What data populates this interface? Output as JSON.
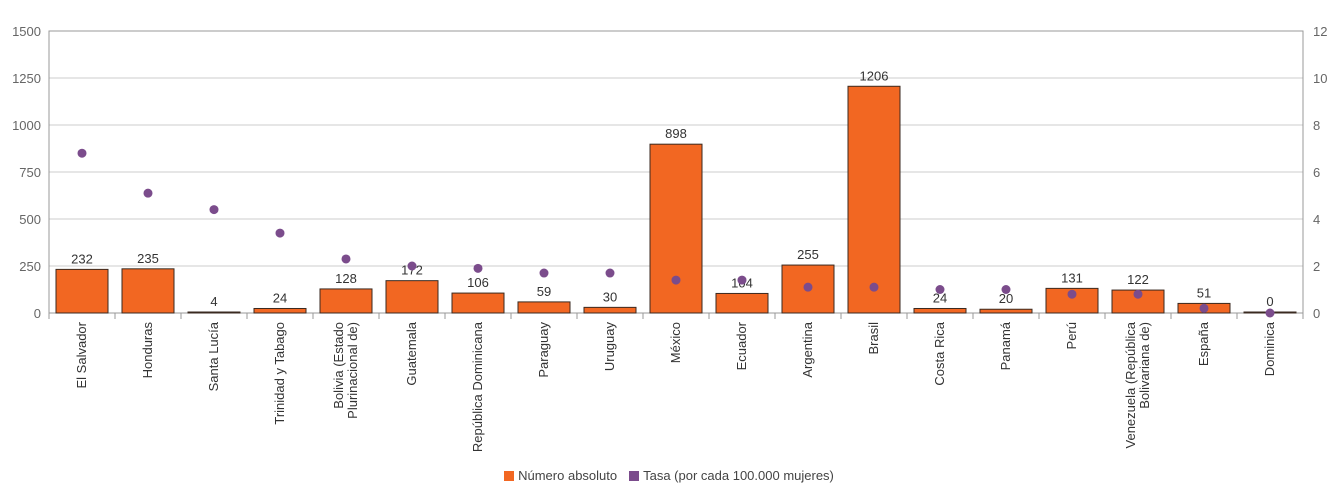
{
  "chart_data": {
    "type": "bar",
    "categories": [
      "El Salvador",
      "Honduras",
      "Santa Lucía",
      "Trinidad y Tabago",
      "Bolivia (Estado Plurinacional de)",
      "Guatemala",
      "República Dominicana",
      "Paraguay",
      "Uruguay",
      "México",
      "Ecuador",
      "Argentina",
      "Brasil",
      "Costa Rica",
      "Panamá",
      "Perú",
      "Venezuela (República Bolivariana de)",
      "España",
      "Dominica"
    ],
    "category_lines": [
      [
        "El Salvador"
      ],
      [
        "Honduras"
      ],
      [
        "Santa Lucía"
      ],
      [
        "Trinidad y Tabago"
      ],
      [
        "Bolivia (Estado",
        "Plurinacional de)"
      ],
      [
        "Guatemala"
      ],
      [
        "República Dominicana"
      ],
      [
        "Paraguay"
      ],
      [
        "Uruguay"
      ],
      [
        "México"
      ],
      [
        "Ecuador"
      ],
      [
        "Argentina"
      ],
      [
        "Brasil"
      ],
      [
        "Costa Rica"
      ],
      [
        "Panamá"
      ],
      [
        "Perú"
      ],
      [
        "Venezuela (República",
        "Bolivariana de)"
      ],
      [
        "España"
      ],
      [
        "Dominica"
      ]
    ],
    "series": [
      {
        "name": "Número absoluto",
        "type": "bar",
        "axis": "left",
        "color": "#f26722",
        "values": [
          232,
          235,
          4,
          24,
          128,
          172,
          106,
          59,
          30,
          898,
          104,
          255,
          1206,
          24,
          20,
          131,
          122,
          51,
          0
        ]
      },
      {
        "name": "Tasa (por cada 100.000 mujeres)",
        "type": "scatter",
        "axis": "right",
        "color": "#7b4c8c",
        "values": [
          6.8,
          5.1,
          4.4,
          3.4,
          2.3,
          2.0,
          1.9,
          1.7,
          1.7,
          1.4,
          1.4,
          1.1,
          1.1,
          1.0,
          1.0,
          0.8,
          0.8,
          0.2,
          0.0
        ]
      }
    ],
    "y_left": {
      "min": 0,
      "max": 1500,
      "ticks": [
        0,
        250,
        500,
        750,
        1000,
        1250,
        1500
      ]
    },
    "y_right": {
      "min": 0,
      "max": 12,
      "ticks": [
        0,
        2,
        4,
        6,
        8,
        10,
        12
      ]
    },
    "grid": true,
    "legend_position": "bottom-center",
    "title": "",
    "xlabel": "",
    "ylabel": ""
  },
  "legend": {
    "items": [
      {
        "label": "Número absoluto",
        "color": "#f26722"
      },
      {
        "label": "Tasa (por cada 100.000 mujeres)",
        "color": "#7b4c8c"
      }
    ]
  }
}
